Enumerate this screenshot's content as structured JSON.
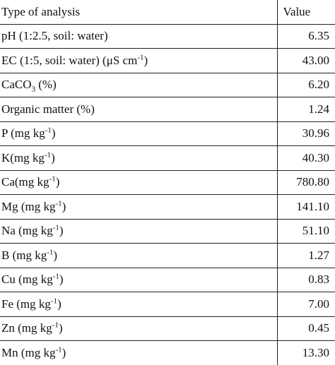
{
  "table": {
    "headers": [
      "Type of analysis",
      "Value"
    ],
    "rows": [
      {
        "label": "pH (1:2.5, soil: water)",
        "value": "6.35"
      },
      {
        "label": "EC (1:5, soil: water) (μS cm",
        "label_sup": "-1",
        "label_suffix": ")",
        "value": "43.00"
      },
      {
        "label": "CaCO",
        "label_sub": "3",
        "label_suffix": " (%)",
        "value": "6.20"
      },
      {
        "label": "Organic matter (%)",
        "value": "1.24"
      },
      {
        "label": "P (mg kg",
        "label_sup": "-1",
        "label_suffix": ")",
        "value": "30.96"
      },
      {
        "label": "K(mg kg",
        "label_sup": "-1",
        "label_suffix": ")",
        "value": "40.30"
      },
      {
        "label": "Ca(mg kg",
        "label_sup": "-1",
        "label_suffix": ")",
        "value": "780.80"
      },
      {
        "label": "Mg (mg kg",
        "label_sup": "-1",
        "label_suffix": ")",
        "value": "141.10"
      },
      {
        "label": "Na (mg kg",
        "label_sup": "-1",
        "label_suffix": ")",
        "value": "51.10"
      },
      {
        "label": "B (mg kg",
        "label_sup": "-1",
        "label_suffix": ")",
        "value": "1.27"
      },
      {
        "label": "Cu (mg kg",
        "label_sup": "-1",
        "label_suffix": ")",
        "value": "0.83"
      },
      {
        "label": "Fe (mg kg",
        "label_sup": "-1",
        "label_suffix": ")",
        "value": "7.00"
      },
      {
        "label": "Zn (mg kg",
        "label_sup": "-1",
        "label_suffix": ")",
        "value": "0.45"
      },
      {
        "label": "Mn (mg kg",
        "label_sup": "-1",
        "label_suffix": ")",
        "value": "13.30"
      }
    ]
  }
}
